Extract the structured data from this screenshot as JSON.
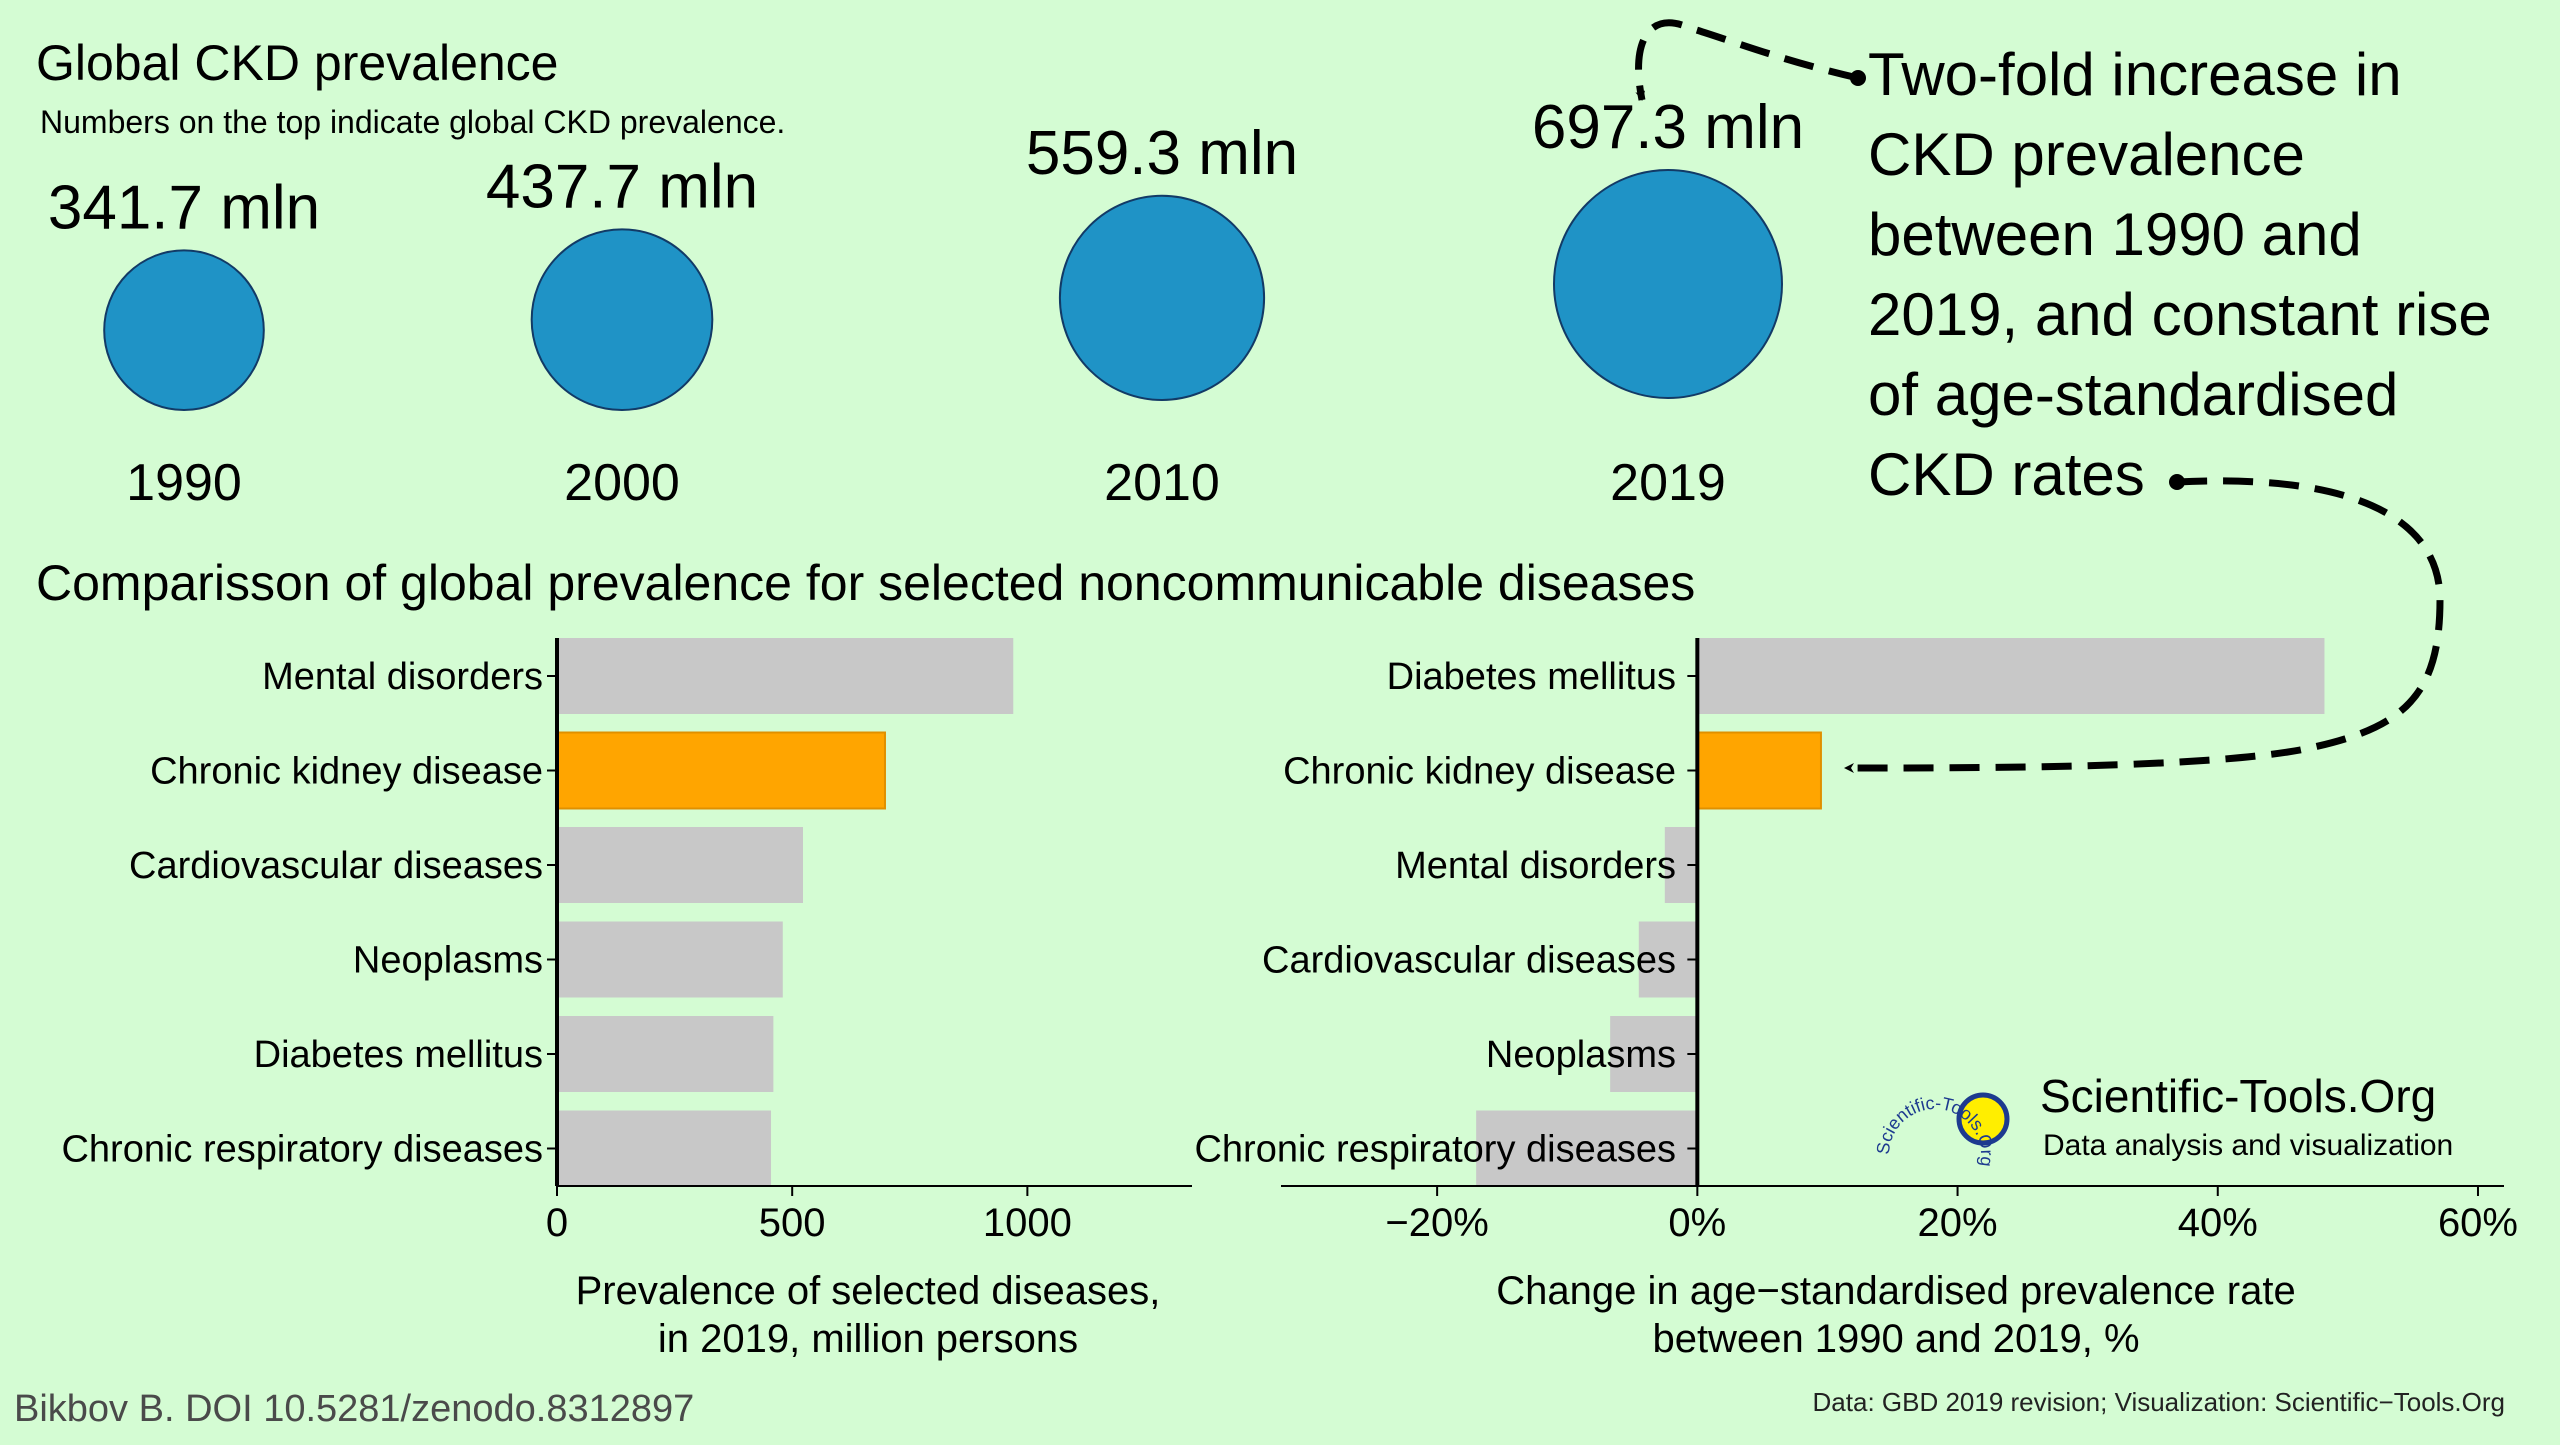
{
  "colors": {
    "background": "#d4fcd3",
    "bubble": "#1f93c6",
    "bubble_stroke": "#123a66",
    "bar_default": "#c8c8c8",
    "bar_highlight": "#ffa500",
    "logo_sun": "#ffee00",
    "logo_ring": "#1d3a8f"
  },
  "top": {
    "title": "Global CKD prevalence",
    "subtitle": "Numbers on the top indicate global CKD prevalence."
  },
  "annotation": {
    "lines": [
      "Two-fold increase in",
      "CKD prevalence",
      "between 1990 and",
      "2019, and constant rise",
      "of age-standardised",
      "CKD rates"
    ]
  },
  "section_title": "Comparisson of global prevalence for selected noncommunicable diseases",
  "chart_data": [
    {
      "type": "bubble",
      "title": "Global CKD prevalence",
      "unit": "mln",
      "x": [
        "1990",
        "2000",
        "2010",
        "2019"
      ],
      "values": [
        341.7,
        437.7,
        559.3,
        697.3
      ],
      "labels": [
        "341.7 mln",
        "437.7 mln",
        "559.3 mln",
        "697.3 mln"
      ]
    },
    {
      "type": "bar",
      "orientation": "horizontal",
      "categories": [
        "Mental disorders",
        "Chronic kidney disease",
        "Cardiovascular diseases",
        "Neoplasms",
        "Diabetes mellitus",
        "Chronic respiratory diseases"
      ],
      "values": [
        970,
        697.3,
        523,
        480,
        460,
        455
      ],
      "highlight": "Chronic kidney disease",
      "xlim": [
        0,
        1350
      ],
      "xticks": [
        0,
        500,
        1000
      ],
      "xtick_labels": [
        "0",
        "500",
        "1000"
      ],
      "xlabel_lines": [
        "Prevalence of selected diseases,",
        "in 2019, million persons"
      ]
    },
    {
      "type": "bar",
      "orientation": "horizontal",
      "categories": [
        "Diabetes mellitus",
        "Chronic kidney disease",
        "Mental disorders",
        "Cardiovascular diseases",
        "Neoplasms",
        "Chronic respiratory diseases"
      ],
      "values": [
        48.2,
        9.5,
        -2.5,
        -4.5,
        -6.7,
        -17.0
      ],
      "highlight": "Chronic kidney disease",
      "xlim": [
        -32,
        62
      ],
      "xticks": [
        -20,
        0,
        20,
        40,
        60
      ],
      "xtick_labels": [
        "−20%",
        "0%",
        "20%",
        "40%",
        "60%"
      ],
      "xlabel_lines": [
        "Change in age−standardised prevalence rate",
        "between 1990 and 2019, %"
      ]
    }
  ],
  "footer": {
    "doi": "Bikbov B. DOI 10.5281/zenodo.8312897",
    "source": "Data: GBD 2019 revision; Visualization: Scientific−Tools.Org"
  },
  "logo": {
    "name": "Scientific-Tools.Org",
    "tagline": "Data analysis and visualization",
    "ring_text": "Scientific-Tools.Org"
  }
}
